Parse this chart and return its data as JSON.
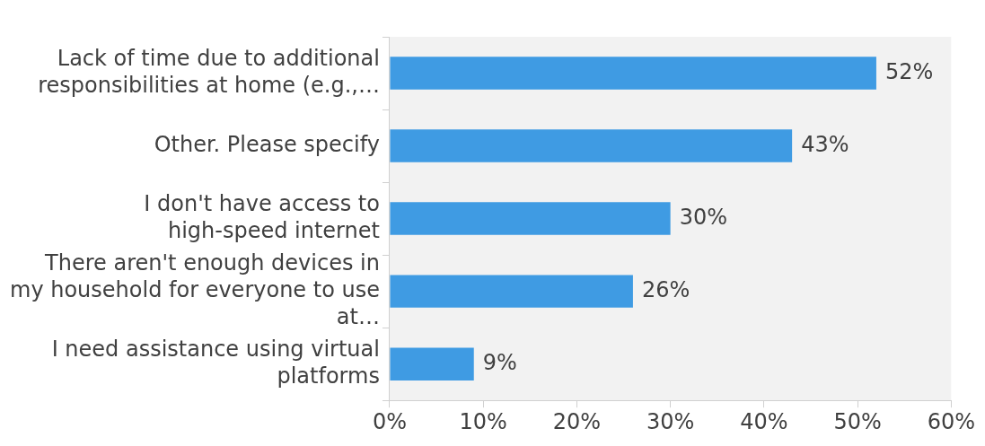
{
  "chart_data": {
    "type": "bar",
    "orientation": "horizontal",
    "categories": [
      "Lack of time due to additional responsibilities at home (e.g.,…",
      "Other. Please specify",
      "I don't have access to high-speed internet",
      "There aren't enough devices in my household for everyone to use at…",
      "I need assistance using virtual platforms"
    ],
    "values": [
      52,
      43,
      30,
      26,
      9
    ],
    "value_labels": [
      "52%",
      "43%",
      "30%",
      "26%",
      "9%"
    ],
    "color": "#3f9be3",
    "xlim": [
      0,
      60
    ],
    "xticks": [
      {
        "value": 0,
        "label": "0%"
      },
      {
        "value": 10,
        "label": "10%"
      },
      {
        "value": 20,
        "label": "20%"
      },
      {
        "value": 30,
        "label": "30%"
      },
      {
        "value": 40,
        "label": "40%"
      },
      {
        "value": 50,
        "label": "50%"
      },
      {
        "value": 60,
        "label": "60%"
      }
    ],
    "grid": false,
    "legend": false
  }
}
